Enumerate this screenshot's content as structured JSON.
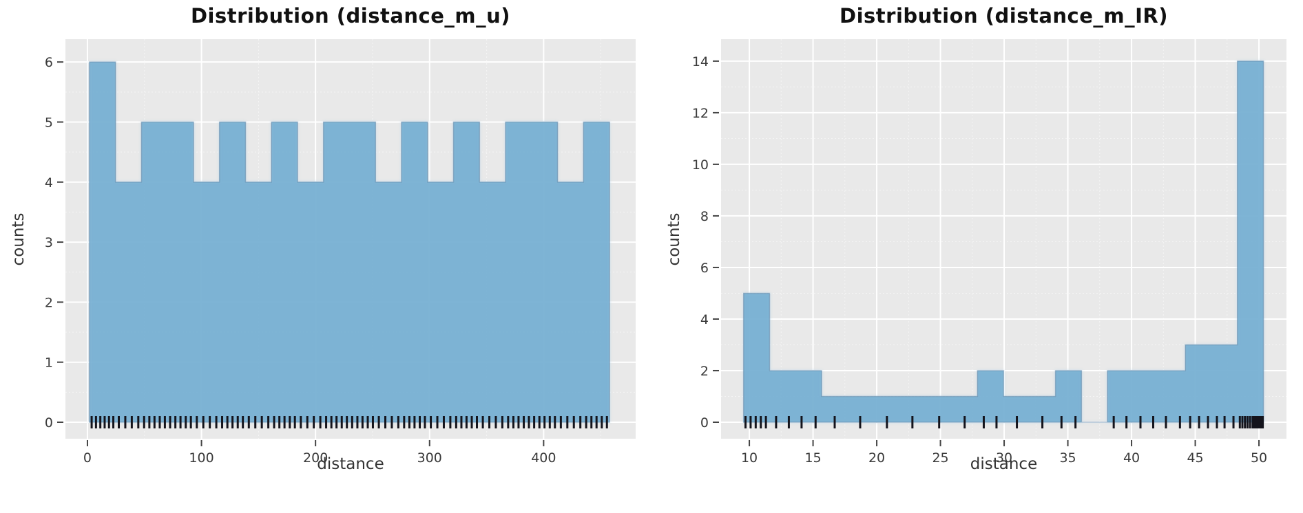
{
  "figure": {
    "background": "#ffffff",
    "panel_bg": "#e9e9e9",
    "grid_color": "#ffffff",
    "bar_fill": "rgba(108,169,206,0.8)",
    "bar_fill_hex": "#85b6d3",
    "bar_edge": "rgba(80,120,155,0.45)",
    "rug_color": "#14141c",
    "tick_mark_color": "#444444",
    "tick_label_color": "#3a3a3a",
    "title_color": "#111111",
    "axis_label_color": "#333333"
  },
  "chart_data": [
    {
      "type": "bar",
      "subtype": "histogram-with-rug",
      "title": "Distribution (distance_m_u)",
      "xlabel": "distance",
      "ylabel": "counts",
      "bin_start": 1.8,
      "bin_width": 22.8,
      "counts": [
        6,
        4,
        5,
        5,
        4,
        5,
        4,
        5,
        4,
        5,
        5,
        4,
        5,
        4,
        5,
        4,
        5,
        5,
        4,
        5
      ],
      "xticks": [
        0,
        100,
        200,
        300,
        400
      ],
      "yticks": [
        0,
        1,
        2,
        3,
        4,
        5,
        6
      ],
      "xlim": [
        -19.3,
        480.7
      ],
      "ylim": [
        -0.275,
        6.38
      ],
      "grid": "major-and-minor",
      "legend": "none",
      "rug": [
        3.7,
        7.5,
        11.3,
        15.1,
        18.9,
        22.7,
        27.5,
        33.2,
        38.9,
        44.6,
        49.7,
        54.3,
        58.8,
        63.4,
        67.9,
        72.5,
        77.1,
        81.6,
        86.2,
        90.7,
        95.9,
        101.6,
        107.3,
        113.0,
        118.1,
        122.7,
        127.2,
        131.8,
        136.3,
        141.5,
        147.2,
        152.9,
        158.6,
        163.7,
        168.3,
        172.8,
        177.4,
        181.9,
        187.1,
        192.8,
        198.5,
        204.2,
        209.3,
        213.9,
        218.4,
        223.0,
        227.5,
        232.1,
        236.7,
        241.2,
        245.8,
        250.3,
        255.5,
        261.2,
        266.9,
        272.6,
        277.7,
        282.3,
        286.8,
        291.4,
        295.9,
        301.1,
        306.8,
        312.5,
        318.2,
        323.3,
        327.9,
        332.4,
        337.0,
        341.5,
        346.7,
        352.4,
        358.1,
        363.8,
        368.9,
        373.5,
        378.0,
        382.6,
        387.1,
        391.7,
        396.3,
        400.8,
        405.4,
        409.9,
        415.1,
        420.8,
        426.5,
        432.2,
        437.3,
        441.9,
        446.4,
        451.0,
        455.5
      ]
    },
    {
      "type": "bar",
      "subtype": "histogram-with-rug",
      "title": "Distribution (distance_m_IR)",
      "xlabel": "distance",
      "ylabel": "counts",
      "bin_start": 9.55,
      "bin_width": 2.04,
      "counts": [
        5,
        2,
        2,
        1,
        1,
        1,
        1,
        1,
        1,
        2,
        1,
        1,
        2,
        0,
        2,
        2,
        2,
        3,
        3,
        14
      ],
      "xticks": [
        10,
        15,
        20,
        25,
        30,
        35,
        40,
        45,
        50
      ],
      "yticks": [
        0,
        2,
        4,
        6,
        8,
        10,
        12,
        14
      ],
      "xlim": [
        7.78,
        52.16
      ],
      "ylim": [
        -0.64,
        14.85
      ],
      "grid": "major-and-minor",
      "legend": "none",
      "rug": [
        9.7,
        10.1,
        10.5,
        10.9,
        11.3,
        12.1,
        13.1,
        14.1,
        15.2,
        16.7,
        18.7,
        20.8,
        22.8,
        24.9,
        26.9,
        28.4,
        29.4,
        31.0,
        33.0,
        34.5,
        35.6,
        38.6,
        39.6,
        40.7,
        41.7,
        42.7,
        43.8,
        44.6,
        45.3,
        46.0,
        46.7,
        47.3,
        48.0,
        48.5,
        48.7,
        48.9,
        49.1,
        49.3,
        49.5,
        49.6,
        49.7,
        49.8,
        49.9,
        50.0,
        50.1,
        50.2,
        50.3
      ]
    }
  ]
}
